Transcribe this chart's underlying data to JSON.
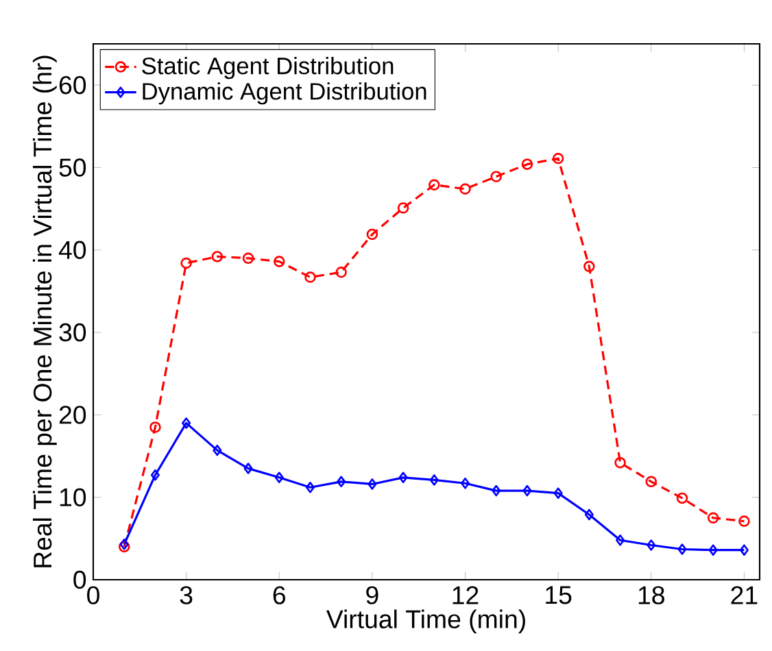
{
  "chart_data": {
    "type": "line",
    "xlabel": "Virtual Time (min)",
    "ylabel": "Real Time per One Minute in Virtual Time (hr)",
    "x": [
      1,
      2,
      3,
      4,
      5,
      6,
      7,
      8,
      9,
      10,
      11,
      12,
      13,
      14,
      15,
      16,
      17,
      18,
      19,
      20,
      21
    ],
    "series": [
      {
        "name": "Static Agent Distribution",
        "color": "#ff0000",
        "marker": "circle",
        "line_style": "dashed",
        "values": [
          4.0,
          18.5,
          38.4,
          39.2,
          39.0,
          38.6,
          36.7,
          37.3,
          41.9,
          45.1,
          47.9,
          47.4,
          48.9,
          50.4,
          51.1,
          38.0,
          14.2,
          11.9,
          9.9,
          7.5,
          7.1
        ]
      },
      {
        "name": "Dynamic Agent Distribution",
        "color": "#0000ff",
        "marker": "diamond",
        "line_style": "solid",
        "values": [
          4.3,
          12.7,
          19.0,
          15.7,
          13.5,
          12.4,
          11.2,
          11.9,
          11.6,
          12.4,
          12.1,
          11.7,
          10.8,
          10.8,
          10.5,
          7.9,
          4.8,
          4.2,
          3.7,
          3.6,
          3.6
        ]
      }
    ],
    "xlim": [
      0,
      21.5
    ],
    "ylim": [
      0,
      65
    ],
    "xticks": [
      0,
      3,
      6,
      9,
      12,
      15,
      18,
      21
    ],
    "yticks": [
      0,
      10,
      20,
      30,
      40,
      50,
      60
    ],
    "legend": "top left"
  }
}
